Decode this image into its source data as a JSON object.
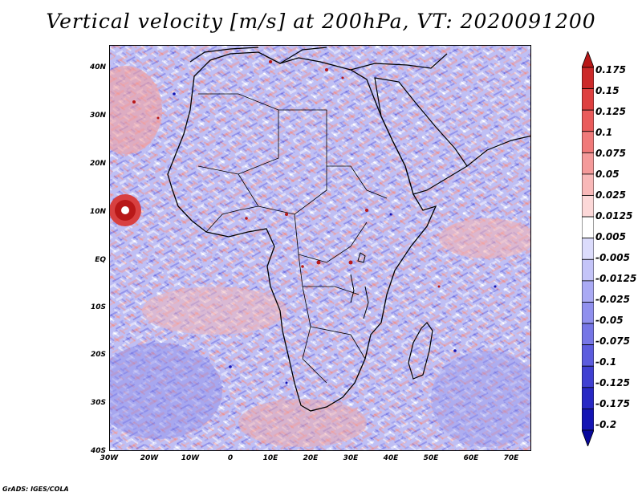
{
  "title": "Vertical velocity [m/s] at 200hPa, VT: 2020091200",
  "footer": "GrADS: IGES/COLA",
  "map": {
    "variable": "Vertical velocity",
    "units": "m/s",
    "level": "200hPa",
    "valid_time": "2020091200",
    "lat_ticks": [
      "40N",
      "30N",
      "20N",
      "10N",
      "EQ",
      "10S",
      "20S",
      "30S",
      "40S"
    ],
    "lon_ticks": [
      "30W",
      "20W",
      "10W",
      "0",
      "10E",
      "20E",
      "30E",
      "40E",
      "50E",
      "60E",
      "70E"
    ]
  },
  "colorbar": {
    "labels": [
      "0.175",
      "0.15",
      "0.125",
      "0.1",
      "0.075",
      "0.05",
      "0.025",
      "0.0125",
      "0.005",
      "-0.005",
      "-0.0125",
      "-0.025",
      "-0.05",
      "-0.075",
      "-0.1",
      "-0.125",
      "-0.175",
      "-0.2"
    ],
    "colors": [
      "#b81818",
      "#cc2a2a",
      "#de4040",
      "#ea5c5c",
      "#f07a7a",
      "#f49a9a",
      "#f8b8b8",
      "#fcd8d8",
      "#ffffff",
      "#dcdcfc",
      "#c4c4f8",
      "#aaaaf4",
      "#9090ee",
      "#7676e6",
      "#5c5cde",
      "#4040d2",
      "#2828c4",
      "#1414b4",
      "#08089c"
    ]
  }
}
